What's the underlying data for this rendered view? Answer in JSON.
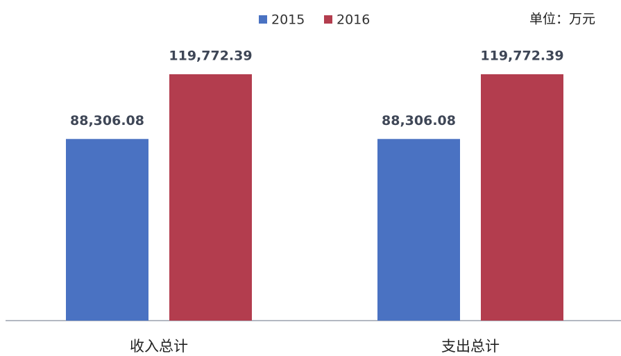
{
  "chart_data": {
    "type": "bar",
    "categories": [
      "收入总计",
      "支出总计"
    ],
    "series": [
      {
        "name": "2015",
        "color": "#4a72c2",
        "values": [
          88306.08,
          88306.08
        ],
        "value_labels": [
          "88,306.08",
          "88,306.08"
        ]
      },
      {
        "name": "2016",
        "color": "#b33d4e",
        "values": [
          119772.39,
          119772.39
        ],
        "value_labels": [
          "119,772.39",
          "119,772.39"
        ]
      }
    ],
    "annotation": "单位：万元"
  }
}
